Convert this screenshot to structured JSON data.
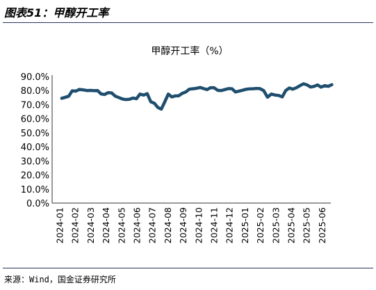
{
  "figure_title": "图表51：甲醇开工率",
  "source": "来源：Wind，国金证券研究所",
  "colors": {
    "line": "#1f4e6e",
    "axis": "#333333",
    "rule": "#24355a"
  },
  "chart_data": {
    "type": "line",
    "title": "甲醇开工率（%）",
    "xlabel": "",
    "ylabel": "",
    "ylim": [
      0,
      90
    ],
    "yticks": [
      "0.0%",
      "10.0%",
      "20.0%",
      "30.0%",
      "40.0%",
      "50.0%",
      "60.0%",
      "70.0%",
      "80.0%",
      "90.0%"
    ],
    "x_tick_labels": [
      "2024-01",
      "2024-02",
      "2024-03",
      "2024-04",
      "2024-05",
      "2024-06",
      "2024-07",
      "2024-08",
      "2024-09",
      "2024-10",
      "2024-11",
      "2024-12",
      "2025-01",
      "2025-02",
      "2025-03",
      "2025-04",
      "2025-05",
      "2025-06"
    ],
    "grid": false,
    "legend": "none",
    "x": [
      "2024-01-05",
      "2024-01-12",
      "2024-01-19",
      "2024-01-26",
      "2024-02-02",
      "2024-02-09",
      "2024-02-16",
      "2024-02-23",
      "2024-03-01",
      "2024-03-08",
      "2024-03-15",
      "2024-03-22",
      "2024-03-29",
      "2024-04-05",
      "2024-04-12",
      "2024-04-19",
      "2024-04-26",
      "2024-05-03",
      "2024-05-10",
      "2024-05-17",
      "2024-05-24",
      "2024-05-31",
      "2024-06-07",
      "2024-06-14",
      "2024-06-21",
      "2024-06-28",
      "2024-07-05",
      "2024-07-12",
      "2024-07-19",
      "2024-07-26",
      "2024-08-02",
      "2024-08-09",
      "2024-08-16",
      "2024-08-23",
      "2024-08-30",
      "2024-09-06",
      "2024-09-13",
      "2024-09-20",
      "2024-09-27",
      "2024-10-04",
      "2024-10-11",
      "2024-10-18",
      "2024-10-25",
      "2024-11-01",
      "2024-11-08",
      "2024-11-15",
      "2024-11-22",
      "2024-11-29",
      "2024-12-06",
      "2024-12-13",
      "2024-12-20",
      "2024-12-27",
      "2025-01-03",
      "2025-01-10",
      "2025-01-17",
      "2025-01-24",
      "2025-01-31",
      "2025-02-07",
      "2025-02-14",
      "2025-02-21",
      "2025-02-28",
      "2025-03-07",
      "2025-03-14",
      "2025-03-21",
      "2025-03-28",
      "2025-04-04",
      "2025-04-11",
      "2025-04-18",
      "2025-04-25",
      "2025-05-02",
      "2025-05-09",
      "2025-05-16",
      "2025-05-23",
      "2025-05-30",
      "2025-06-06",
      "2025-06-13",
      "2025-06-20"
    ],
    "series": [
      {
        "name": "",
        "values": [
          74.5,
          75.2,
          76.0,
          79.8,
          79.6,
          80.8,
          80.5,
          80.0,
          80.1,
          79.9,
          80.0,
          77.6,
          77.2,
          78.5,
          78.3,
          76.0,
          75.0,
          74.0,
          73.6,
          73.8,
          74.7,
          74.2,
          77.5,
          76.8,
          77.8,
          72.0,
          71.0,
          68.0,
          66.8,
          72.0,
          77.5,
          75.5,
          76.2,
          76.3,
          78.0,
          79.0,
          81.0,
          81.3,
          81.6,
          82.2,
          81.4,
          80.7,
          82.0,
          82.0,
          80.2,
          80.0,
          80.7,
          81.4,
          81.3,
          79.0,
          79.6,
          80.2,
          80.9,
          81.2,
          81.3,
          81.5,
          81.4,
          80.0,
          75.3,
          77.5,
          76.8,
          76.5,
          75.5,
          80.0,
          81.8,
          81.0,
          82.0,
          83.5,
          84.8,
          84.0,
          82.5,
          83.0,
          84.0,
          82.4,
          83.5,
          83.0,
          84.2
        ]
      }
    ]
  }
}
